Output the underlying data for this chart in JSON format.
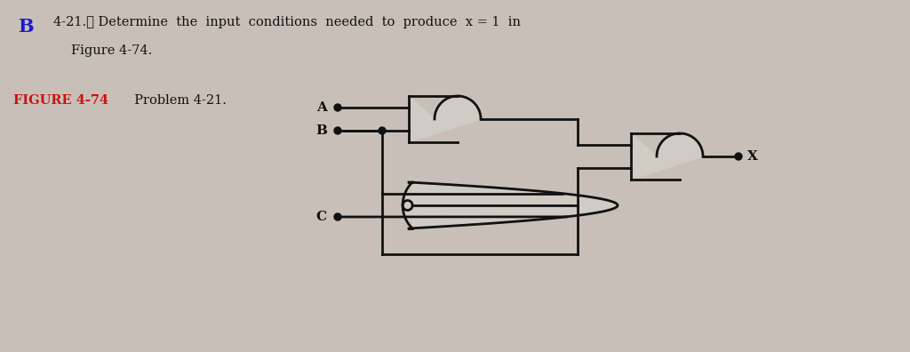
{
  "bg_color": "#c8c0b8",
  "title_b": "B",
  "title_b_color": "#1a1acc",
  "problem_line1": "4-21.★ Determine  the  input  conditions  needed  to  produce  x = 1  in",
  "problem_line2": "Figure 4-74.",
  "figure_label": "FIGURE 4-74",
  "figure_label_color": "#cc1111",
  "figure_caption": "  Problem 4-21.",
  "input_A": "A",
  "input_B": "B",
  "input_C": "C",
  "output_X": "X",
  "lc": "#111111",
  "gfc": "#d0cbc4",
  "lw": 2.0
}
